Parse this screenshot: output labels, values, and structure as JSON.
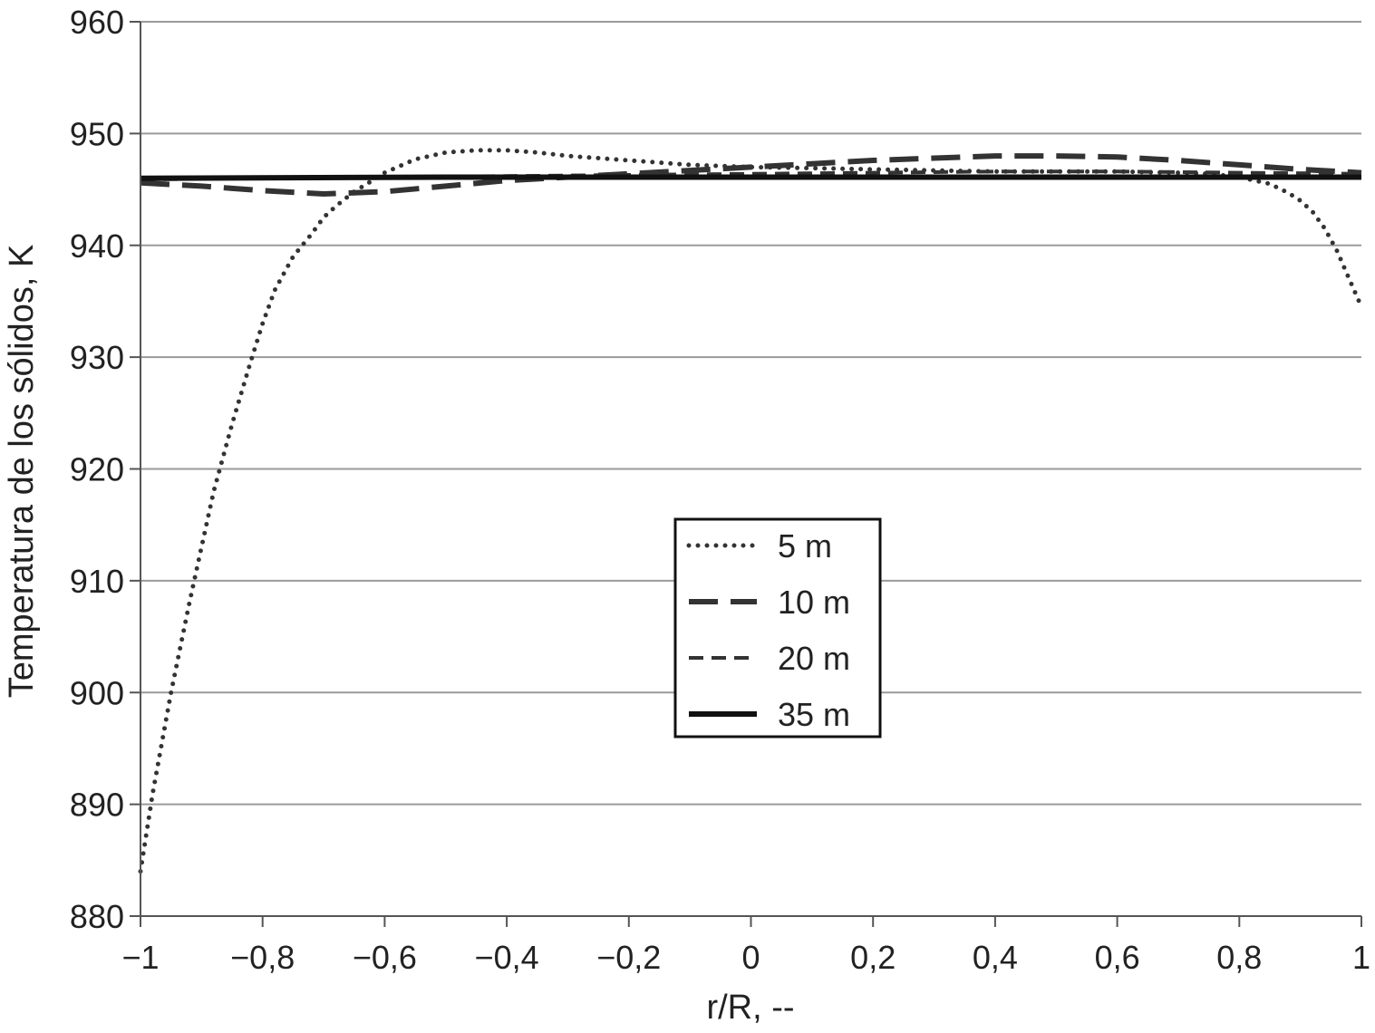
{
  "chart_data": {
    "type": "line",
    "title": "",
    "xlabel": "r/R, --",
    "ylabel": "Temperatura de los sólidos, K",
    "xlim": [
      -1,
      1
    ],
    "ylim": [
      880,
      960
    ],
    "grid": "horizontal",
    "legend_position": "center",
    "x_ticks": [
      -1,
      -0.8,
      -0.6,
      -0.4,
      -0.2,
      0,
      0.2,
      0.4,
      0.6,
      0.8,
      1
    ],
    "x_tick_labels": [
      "−1",
      "−0,8",
      "−0,6",
      "−0,4",
      "−0,2",
      "0",
      "0,2",
      "0,4",
      "0,6",
      "0,8",
      "1"
    ],
    "y_ticks": [
      880,
      890,
      900,
      910,
      920,
      930,
      940,
      950,
      960
    ],
    "y_tick_labels": [
      "880",
      "890",
      "900",
      "910",
      "920",
      "930",
      "940",
      "950",
      "960"
    ],
    "series": [
      {
        "name": "5 m",
        "style": "dotted",
        "color": "#333333",
        "x": [
          -1,
          -0.98,
          -0.95,
          -0.92,
          -0.9,
          -0.88,
          -0.85,
          -0.82,
          -0.8,
          -0.78,
          -0.75,
          -0.72,
          -0.7,
          -0.68,
          -0.65,
          -0.62,
          -0.6,
          -0.55,
          -0.5,
          -0.45,
          -0.4,
          -0.35,
          -0.3,
          -0.2,
          -0.1,
          0,
          0.1,
          0.2,
          0.3,
          0.4,
          0.5,
          0.6,
          0.7,
          0.75,
          0.8,
          0.85,
          0.88,
          0.9,
          0.92,
          0.94,
          0.96,
          0.98,
          1
        ],
        "y": [
          884,
          891,
          900,
          908,
          913,
          918,
          924,
          929.5,
          933,
          936,
          939,
          941,
          942.5,
          943.5,
          944.8,
          945.8,
          946.5,
          947.7,
          948.3,
          948.5,
          948.5,
          948.3,
          948,
          947.6,
          947.2,
          947,
          946.9,
          946.8,
          946.7,
          946.6,
          946.6,
          946.6,
          946.5,
          946.4,
          946.1,
          945.5,
          944.7,
          944,
          943,
          941.5,
          939.5,
          937,
          934.5
        ]
      },
      {
        "name": "10 m",
        "style": "long-dash",
        "color": "#333333",
        "x": [
          -1,
          -0.9,
          -0.8,
          -0.7,
          -0.6,
          -0.5,
          -0.4,
          -0.3,
          -0.2,
          -0.1,
          0,
          0.1,
          0.2,
          0.3,
          0.4,
          0.5,
          0.6,
          0.7,
          0.8,
          0.9,
          1
        ],
        "y": [
          945.6,
          945.3,
          944.9,
          944.6,
          944.8,
          945.3,
          945.8,
          946.1,
          946.4,
          946.7,
          947,
          947.3,
          947.6,
          947.8,
          948,
          948,
          947.9,
          947.6,
          947.2,
          946.8,
          946.5
        ]
      },
      {
        "name": "20 m",
        "style": "short-dash",
        "color": "#333333",
        "x": [
          -1,
          -0.8,
          -0.6,
          -0.4,
          -0.2,
          0,
          0.2,
          0.4,
          0.6,
          0.8,
          1
        ],
        "y": [
          945.9,
          946,
          946.1,
          946.2,
          946.3,
          946.4,
          946.5,
          946.6,
          946.6,
          946.5,
          946.4
        ]
      },
      {
        "name": "35 m",
        "style": "solid",
        "color": "#111111",
        "x": [
          -1,
          -0.5,
          0,
          0.5,
          1
        ],
        "y": [
          946,
          946.1,
          946.1,
          946.1,
          946.1
        ]
      }
    ]
  }
}
